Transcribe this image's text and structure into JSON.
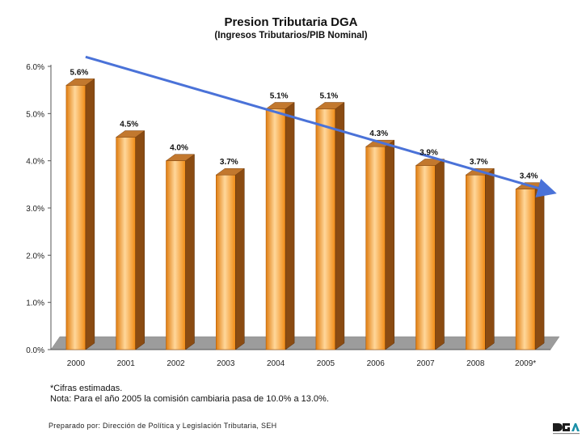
{
  "chart_data": {
    "type": "bar",
    "title": "Presion Tributaria DGA",
    "subtitle": "(Ingresos Tributarios/PIB Nominal)",
    "categories": [
      "2000",
      "2001",
      "2002",
      "2003",
      "2004",
      "2005",
      "2006",
      "2007",
      "2008",
      "2009*"
    ],
    "values": [
      5.6,
      4.5,
      4.0,
      3.7,
      5.1,
      5.1,
      4.3,
      3.9,
      3.7,
      3.4
    ],
    "data_labels": [
      "5.6%",
      "4.5%",
      "4.0%",
      "3.7%",
      "5.1%",
      "5.1%",
      "4.3%",
      "3.9%",
      "3.7%",
      "3.4%"
    ],
    "y_ticks": [
      0,
      1,
      2,
      3,
      4,
      5,
      6
    ],
    "y_tick_labels": [
      "0.0%",
      "1.0%",
      "2.0%",
      "3.0%",
      "4.0%",
      "5.0%",
      "6.0%"
    ],
    "ylim": [
      0,
      6
    ],
    "xlabel": "",
    "ylabel": "",
    "trend": {
      "from_value": 6.2,
      "to_value": 3.35,
      "color": "#4a72d8"
    },
    "colors": {
      "bar": "#f59a1e",
      "bar_light": "#ffd79a",
      "bar_side": "#8a4b12",
      "bar_top": "#c2782e",
      "floor": "#9c9c9c"
    }
  },
  "notes": {
    "line1": "*Cifras estimadas.",
    "line2": "Nota: Para el año 2005 la comisión cambiaria pasa de 10.0% a 13.0%."
  },
  "credit": "Preparado por: Dirección de Política y Legislación Tributaria, SEH",
  "logo": {
    "icon": "dga-logo-icon"
  }
}
